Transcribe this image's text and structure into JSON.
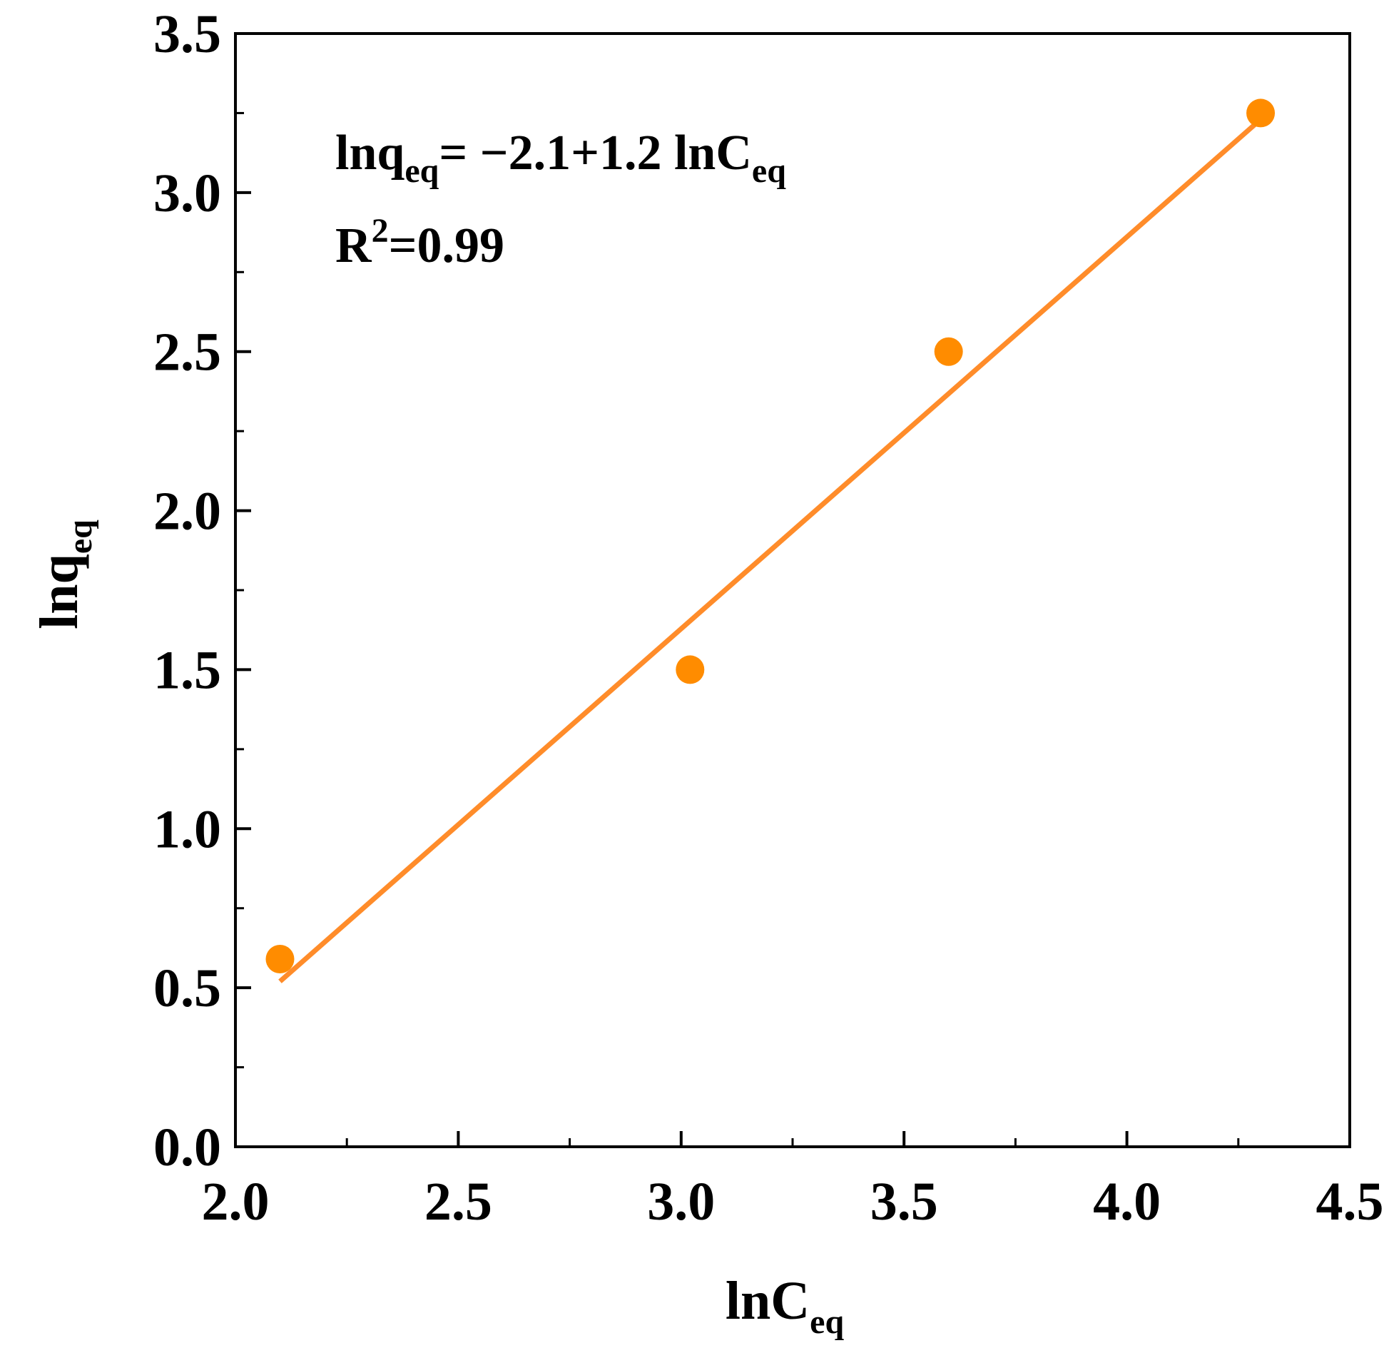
{
  "chart_data": {
    "type": "scatter",
    "xlabel": {
      "main": "lnC",
      "sub": "eq"
    },
    "ylabel": {
      "main": "lnq",
      "sub": "eq"
    },
    "xlim": [
      2.0,
      4.5
    ],
    "ylim": [
      0.0,
      3.5
    ],
    "x_ticks": [
      "2.0",
      "2.5",
      "3.0",
      "3.5",
      "4.0",
      "4.5"
    ],
    "y_ticks": [
      "0.0",
      "0.5",
      "1.0",
      "1.5",
      "2.0",
      "2.5",
      "3.0",
      "3.5"
    ],
    "grid": false,
    "colors": {
      "points": "#FF8C00",
      "fit_line": "#FF8C2A"
    },
    "series": [
      {
        "x": [
          2.1,
          3.02,
          3.6,
          4.3
        ],
        "y": [
          0.59,
          1.5,
          2.5,
          3.25
        ]
      }
    ],
    "fit": {
      "x": [
        2.1,
        4.3
      ],
      "y": [
        0.52,
        3.23
      ]
    },
    "annotation": {
      "line1": {
        "a": "lnq",
        "a_sub": "eq",
        "b": "= −2.1+1.2 lnC",
        "b_sub": "eq"
      },
      "line2": {
        "a": "R",
        "sup": "2",
        "b": "=0.99"
      }
    }
  }
}
